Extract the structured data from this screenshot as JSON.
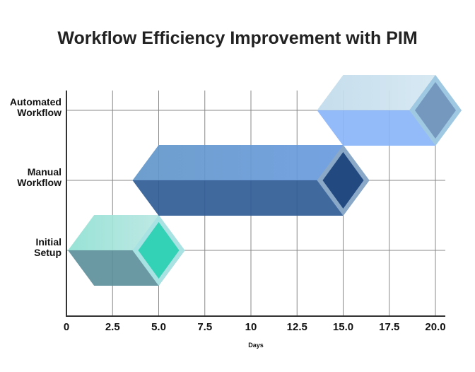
{
  "chart_data": {
    "type": "bar",
    "title": "Workflow Efficiency Improvement with PIM",
    "xlabel": "Days",
    "ylabel": "",
    "xlim": [
      0,
      20
    ],
    "xticks": [
      "0",
      "2.5",
      "5.0",
      "7.5",
      "10",
      "12.5",
      "15.0",
      "17.5",
      "20.0"
    ],
    "xtick_values": [
      0,
      2.5,
      5,
      7.5,
      10,
      12.5,
      15,
      17.5,
      20
    ],
    "grid": true,
    "categories": [
      "Initial Setup",
      "Manual Workflow",
      "Automated Workflow"
    ],
    "category_lines": [
      [
        "Initial",
        "Setup"
      ],
      [
        "Manual",
        "Workflow"
      ],
      [
        "Automated",
        "Workflow"
      ]
    ],
    "series": [
      {
        "name": "Initial Setup",
        "start": 1.5,
        "end": 5,
        "colors": {
          "top": "#8fe0d2",
          "top2": "#c4e8e6",
          "bottom": "#5e909b",
          "diamond": "#33d2b6",
          "border": "#a9e2e2"
        }
      },
      {
        "name": "Manual Workflow",
        "start": 5,
        "end": 15,
        "colors": {
          "top": "#6196c8",
          "top2": "#6a9be2",
          "bottom": "#305c96",
          "diamond": "#234a80",
          "border": "#8aa8c8"
        }
      },
      {
        "name": "Automated Workflow",
        "start": 15,
        "end": 20,
        "colors": {
          "top": "#c0daeb",
          "top2": "#d8eaf3",
          "bottom": "#8ab4f8",
          "diamond": "#7599be",
          "border": "#9fc8e2"
        }
      }
    ]
  }
}
